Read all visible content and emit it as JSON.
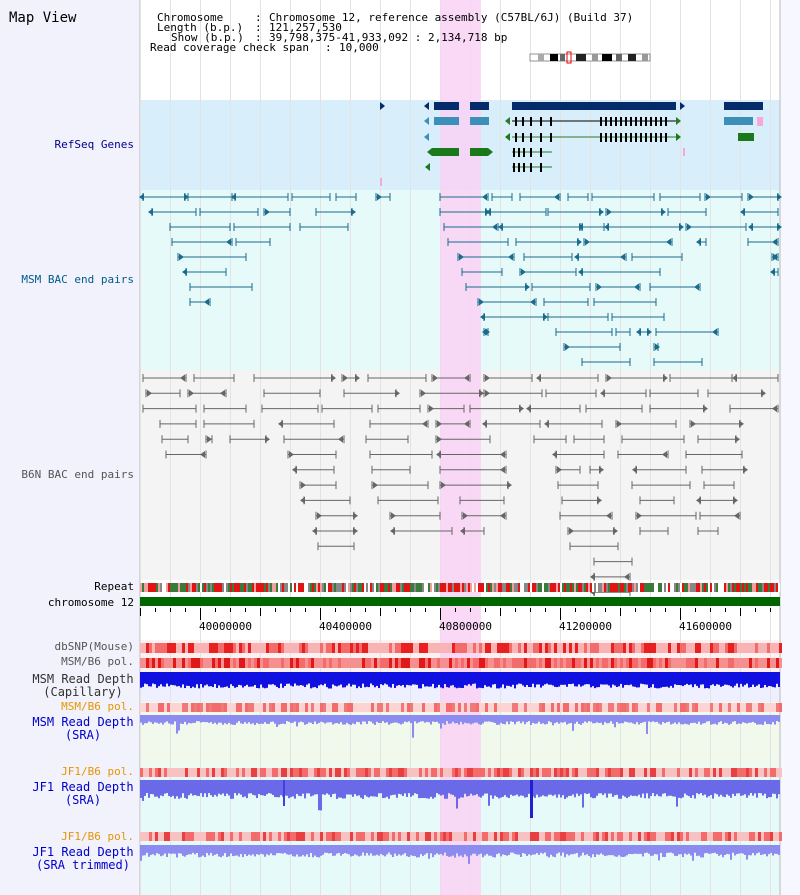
{
  "header": {
    "title": "Map View",
    "chromosome_label": "Chromosome",
    "chromosome_value": "Chromosome 12, reference assembly (C57BL/6J) (Build 37)",
    "length_label": "Length (b.p.)",
    "length_value": "121,257,530",
    "show_label": "Show (b.p.)",
    "show_value": "39,798,375-41,933,092 : 2,134,718 bp",
    "coverage_label": "Read coverage check span",
    "coverage_value": "10,000"
  },
  "tracks": {
    "refseq": "RefSeq Genes",
    "msm_bac": "MSM BAC end pairs",
    "b6n_bac": "B6N BAC end pairs",
    "repeat": "Repeat",
    "chromosome": "chromosome 12",
    "dbsnp": "dbSNP(Mouse)",
    "msm_b6_pol_1": "MSM/B6 pol.",
    "msm_read_depth_cap": "MSM Read Depth\n(Capillary)",
    "msm_b6_pol_2": "MSM/B6 pol.",
    "msm_read_depth_sra": "MSM Read Depth\n(SRA)",
    "jf1_b6_pol_1": "JF1/B6 pol.",
    "jf1_read_depth_sra": "JF1 Read Depth\n(SRA)",
    "jf1_b6_pol_2": "JF1/B6 pol.",
    "jf1_read_depth_trim": "JF1 Read Depth\n(SRA trimmed)"
  },
  "axis": {
    "ticks": [
      "40000000",
      "40400000",
      "40800000",
      "41200000",
      "41600000"
    ]
  },
  "colors": {
    "refseq_label": "#00008b",
    "msm_label": "#005a8c",
    "b6n_label": "#555555",
    "orange_label": "#e69500",
    "blue_label": "#0000cc",
    "highlight": "#f9d2f4",
    "chromosome_bar": "#006600"
  }
}
